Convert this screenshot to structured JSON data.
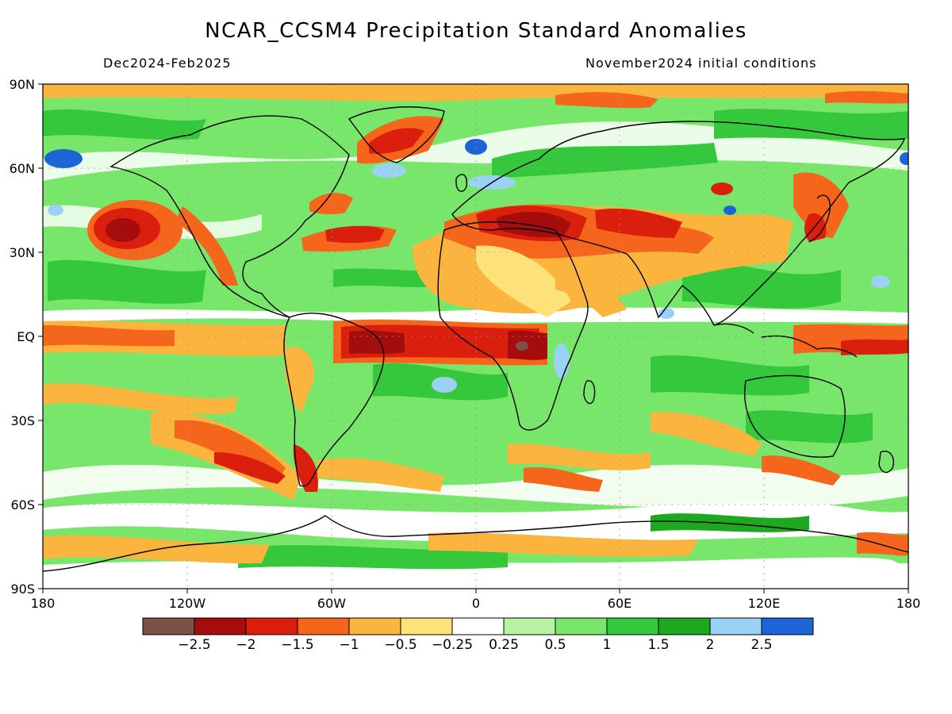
{
  "title": "NCAR_CCSM4 Precipitation Standard Anomalies",
  "period": "Dec2024-Feb2025",
  "initial_conditions": "November2024 initial conditions",
  "lat_labels": [
    "90N",
    "60N",
    "30N",
    "EQ",
    "30S",
    "60S",
    "90S"
  ],
  "lon_labels": [
    "180",
    "120W",
    "60W",
    "0",
    "60E",
    "120E",
    "180"
  ],
  "colorbar": {
    "colors": [
      "#7b5046",
      "#a50d0d",
      "#db1f0f",
      "#f5651b",
      "#fbb43d",
      "#fde27a",
      "#ffffff",
      "#b6f3a4",
      "#78e66a",
      "#35c83c",
      "#1ea820",
      "#9ad2f6",
      "#1d64d6"
    ],
    "labels": [
      "-2.5",
      "-2",
      "-1.5",
      "-1",
      "-0.5",
      "-0.25",
      "0.25",
      "0.5",
      "1",
      "1.5",
      "2",
      "2.5"
    ]
  }
}
